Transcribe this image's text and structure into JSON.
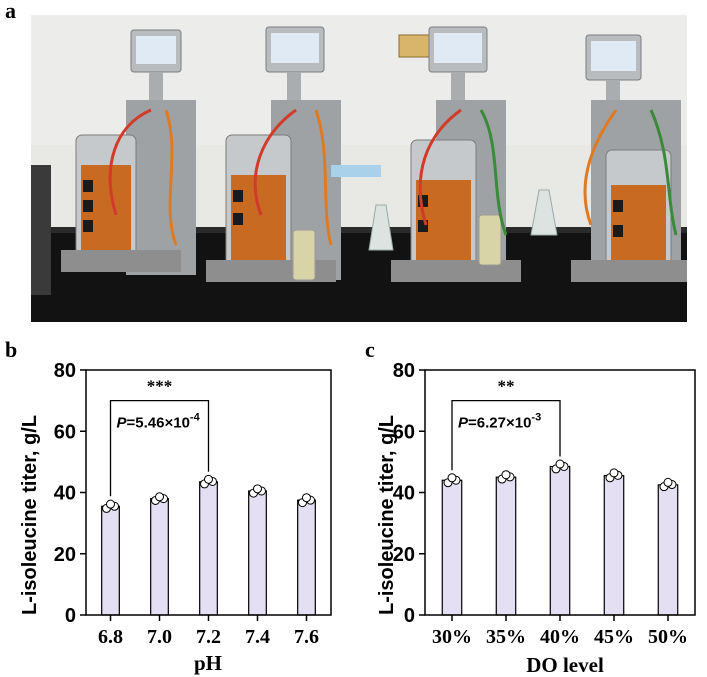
{
  "panels": {
    "a": "a",
    "b": "b",
    "c": "c"
  },
  "colors": {
    "bar_fill": "#e4dff2",
    "bar_stroke": "#000000",
    "wall": "#e6e6e2",
    "bench": "#111111",
    "amber": "#c86a22"
  },
  "chart_data": [
    {
      "type": "bar",
      "panel": "b",
      "categories": [
        "6.8",
        "7.0",
        "7.2",
        "7.4",
        "7.6"
      ],
      "values": [
        35.5,
        38.0,
        43.5,
        40.5,
        37.5
      ],
      "points": [
        [
          34.8,
          35.5,
          36.2
        ],
        [
          37.4,
          38.0,
          38.6
        ],
        [
          42.8,
          43.6,
          44.3
        ],
        [
          39.8,
          40.5,
          41.2
        ],
        [
          36.7,
          37.5,
          38.3
        ]
      ],
      "xlabel": "pH",
      "ylabel": "L-isoleucine titer, g/L",
      "ylim": [
        0,
        80
      ],
      "yticks": [
        "0",
        "20",
        "40",
        "60",
        "80"
      ],
      "significance": {
        "from": 0,
        "to": 2,
        "stars": "***",
        "p_prefix": "P",
        "p_value": "=5.46×10",
        "p_exp": "-4",
        "bracket_y": 70
      }
    },
    {
      "type": "bar",
      "panel": "c",
      "categories": [
        "30%",
        "35%",
        "40%",
        "45%",
        "50%"
      ],
      "values": [
        44.0,
        45.0,
        48.5,
        45.5,
        42.5
      ],
      "points": [
        [
          43.2,
          44.0,
          44.8
        ],
        [
          44.4,
          45.1,
          45.8
        ],
        [
          47.7,
          48.5,
          49.3
        ],
        [
          44.8,
          45.6,
          46.4
        ],
        [
          41.9,
          42.6,
          43.3
        ]
      ],
      "xlabel": "DO level",
      "ylabel": "L-isoleucine titer, g/L",
      "ylim": [
        0,
        80
      ],
      "yticks": [
        "0",
        "20",
        "40",
        "60",
        "80"
      ],
      "significance": {
        "from": 0,
        "to": 2,
        "stars": "**",
        "p_prefix": "P",
        "p_value": "=6.27×10",
        "p_exp": "-3",
        "bracket_y": 70
      }
    }
  ]
}
